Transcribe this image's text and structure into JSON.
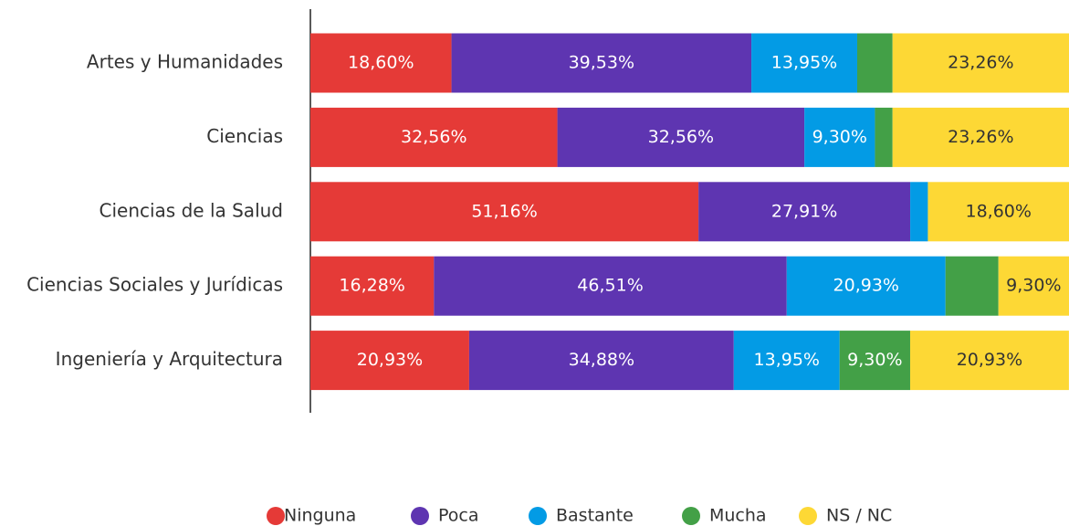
{
  "chart_data": {
    "type": "stacked_bar_horizontal",
    "categories": [
      "Artes y Humanidades",
      "Ciencias",
      "Ciencias de la Salud",
      "Ciencias Sociales y Jurídicas",
      "Ingeniería y Arquitectura"
    ],
    "xlim": [
      0,
      100
    ],
    "series": [
      {
        "name": "Ninguna",
        "color": "#e53a37",
        "values": [
          18.6,
          32.56,
          51.16,
          16.28,
          20.93
        ],
        "value_labels": [
          "18,60%",
          "32,56%",
          "51,16%",
          "16,28%",
          "20,93%"
        ]
      },
      {
        "name": "Poca",
        "color": "#5e35b1",
        "values": [
          39.53,
          32.56,
          27.91,
          46.51,
          34.88
        ],
        "value_labels": [
          "39,53%",
          "32,56%",
          "27,91%",
          "46,51%",
          "34,88%"
        ]
      },
      {
        "name": "Bastante",
        "color": "#039be5",
        "values": [
          13.95,
          9.3,
          2.33,
          20.93,
          13.95
        ],
        "value_labels": [
          "13,95%",
          "9,30%",
          null,
          "20,93%",
          "13,95%"
        ]
      },
      {
        "name": "Mucha",
        "color": "#43a047",
        "values": [
          4.66,
          2.32,
          0,
          6.98,
          9.3
        ],
        "value_labels": [
          null,
          null,
          null,
          null,
          "9,30%"
        ]
      },
      {
        "name": "NS / NC",
        "color": "#fdd835",
        "values": [
          23.26,
          23.26,
          18.6,
          9.3,
          20.93
        ],
        "value_labels": [
          "23,26%",
          "23,26%",
          "18,60%",
          "9,30%",
          "20,93%"
        ]
      }
    ]
  }
}
